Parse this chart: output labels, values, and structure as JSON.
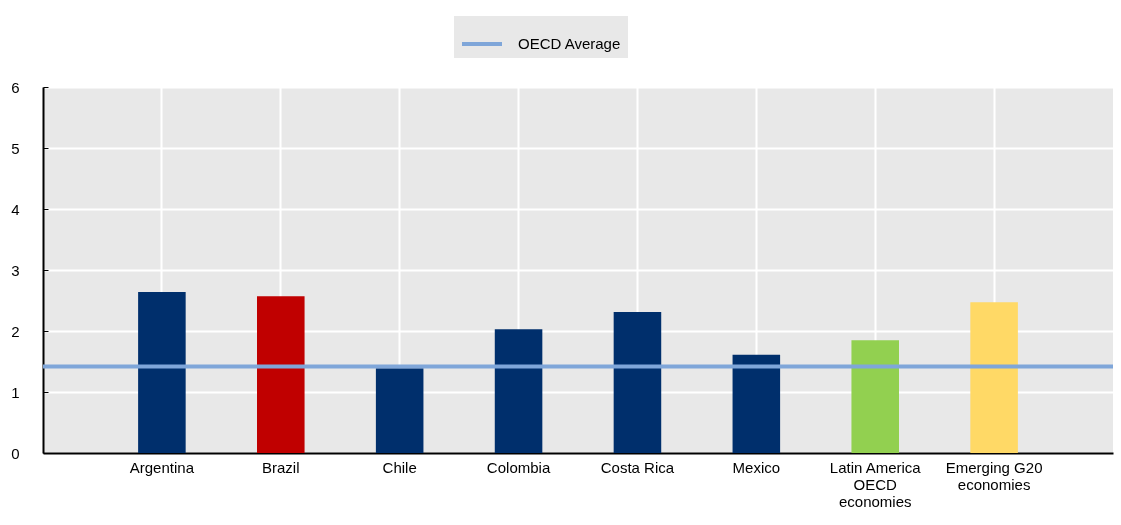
{
  "chart_data": {
    "type": "bar",
    "categories": [
      "Argentina",
      "Brazil",
      "Chile",
      "Colombia",
      "Costa Rica",
      "Mexico",
      "Latin America OECD economies",
      "Emerging G20 economies"
    ],
    "values": [
      2.64,
      2.57,
      1.39,
      2.03,
      2.31,
      1.61,
      1.85,
      2.47
    ],
    "colors": [
      "#002f6c",
      "#c00000",
      "#002f6c",
      "#002f6c",
      "#002f6c",
      "#002f6c",
      "#92d050",
      "#ffd966"
    ],
    "ylim": [
      0,
      6
    ],
    "yticks": [
      0,
      1,
      2,
      3,
      4,
      5,
      6
    ],
    "grid": true,
    "legend": "top",
    "ref_lines": [
      {
        "axis": "y",
        "value": 1.42,
        "label": "OECD Average",
        "color": "#7fa6d9"
      }
    ]
  }
}
